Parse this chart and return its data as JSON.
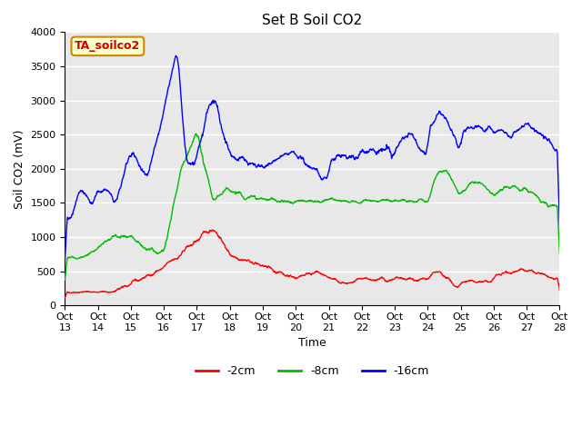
{
  "title": "Set B Soil CO2",
  "ylabel": "Soil CO2 (mV)",
  "xlabel": "Time",
  "ylim": [
    0,
    4000
  ],
  "yticks": [
    0,
    500,
    1000,
    1500,
    2000,
    2500,
    3000,
    3500,
    4000
  ],
  "xtick_labels": [
    "Oct 13",
    "Oct 14",
    "Oct 15",
    "Oct 16",
    "Oct 17",
    "Oct 18",
    "Oct 19",
    "Oct 20",
    "Oct 21",
    "Oct 22",
    "Oct 23",
    "Oct 24",
    "Oct 25",
    "Oct 26",
    "Oct 27",
    "Oct 28"
  ],
  "legend_entries": [
    "-2cm",
    "-8cm",
    "-16cm"
  ],
  "colors": {
    "red": "#ff0000",
    "green": "#00bb00",
    "blue": "#0000ff"
  },
  "label_box": "TA_soilco2",
  "label_box_color": "#ffffcc",
  "label_box_border": "#cc8800",
  "label_text_color": "#cc0000",
  "background_color": "#e8e8e8",
  "figure_bg": "#ffffff",
  "grid_color": "#ffffff",
  "title_fontsize": 11,
  "axis_label_fontsize": 9,
  "tick_fontsize": 8,
  "legend_fontsize": 9,
  "line_width": 1.0
}
